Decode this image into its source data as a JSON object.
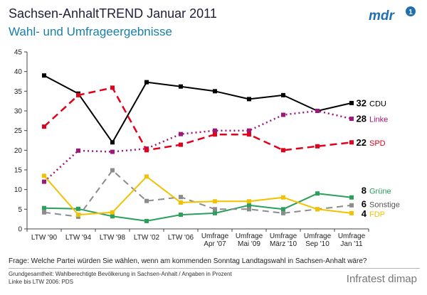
{
  "header": {
    "title": "Sachsen-AnhaltTREND Januar 2011",
    "subtitle": "Wahl- und Umfrageergebnisse"
  },
  "logo": {
    "text": "mdr",
    "icon": "mdr-logo-icon",
    "color": "#1f6fb3"
  },
  "chart_data": {
    "type": "line",
    "title": "",
    "xlabel": "",
    "ylabel": "",
    "ylim": [
      0,
      45
    ],
    "yticks": [
      "0",
      "5",
      "10",
      "15",
      "20",
      "25",
      "30",
      "35",
      "40",
      "45"
    ],
    "grid": false,
    "legend": "end-labels",
    "categories": [
      [
        "LTW '90"
      ],
      [
        "LTW '94"
      ],
      [
        "LTW '98"
      ],
      [
        "LTW '02"
      ],
      [
        "LTW '06"
      ],
      [
        "Umfrage",
        "Apr '07"
      ],
      [
        "Umfrage",
        "Mai '09"
      ],
      [
        "Umfrage",
        "März '10"
      ],
      [
        "Umfrage",
        "Sep '10"
      ],
      [
        "Umfrage",
        "Jan '11"
      ]
    ],
    "series": [
      {
        "name": "CDU",
        "end_label": "32",
        "color": "#000000",
        "label_color": "#000000",
        "dash": "",
        "width": 2,
        "values": [
          39,
          34.4,
          22,
          37.3,
          36.2,
          35,
          33,
          34,
          30,
          32
        ]
      },
      {
        "name": "Linke",
        "end_label": "28",
        "color": "#a0177b",
        "label_color": "#a0177b",
        "dash": "2,4",
        "width": 2.5,
        "values": [
          12,
          19.9,
          19.6,
          20.4,
          24.1,
          25,
          25,
          29,
          30,
          28
        ]
      },
      {
        "name": "SPD",
        "end_label": "22",
        "color": "#e3001b",
        "label_color": "#e3001b",
        "dash": "10,6",
        "width": 2.5,
        "values": [
          26,
          34,
          35.9,
          20,
          21.4,
          24,
          24,
          20,
          21,
          22
        ]
      },
      {
        "name": "Grüne",
        "end_label": "8",
        "color": "#2aa05a",
        "label_color": "#2aa05a",
        "dash": "",
        "width": 2,
        "values": [
          5.3,
          5.1,
          3.2,
          2,
          3.6,
          4,
          6,
          5,
          9,
          8
        ]
      },
      {
        "name": "Sonstige",
        "end_label": "6",
        "color": "#8c8c8c",
        "label_color": "#555555",
        "dash": "9,6",
        "width": 2,
        "values": [
          4.2,
          3.1,
          14.9,
          7.1,
          8.1,
          5,
          5,
          4,
          5,
          6
        ]
      },
      {
        "name": "FDP",
        "end_label": "4",
        "color": "#f2c200",
        "label_color": "#f2c200",
        "dash": "",
        "width": 2,
        "values": [
          13.5,
          3.6,
          4.2,
          13.3,
          6.7,
          7,
          7,
          8,
          5,
          4
        ]
      }
    ]
  },
  "question": "Frage: Welche Partei würden Sie wählen, wenn am kommenden Sonntag Landtagswahl in Sachsen-Anhalt wäre?",
  "footnotes": [
    "Grundgesamtheit: Wahlberechtigte Bevölkerung in Sachsen-Anhalt / Angaben in Prozent",
    "Linke bis LTW 2006: PDS"
  ],
  "source": "Infratest dimap"
}
